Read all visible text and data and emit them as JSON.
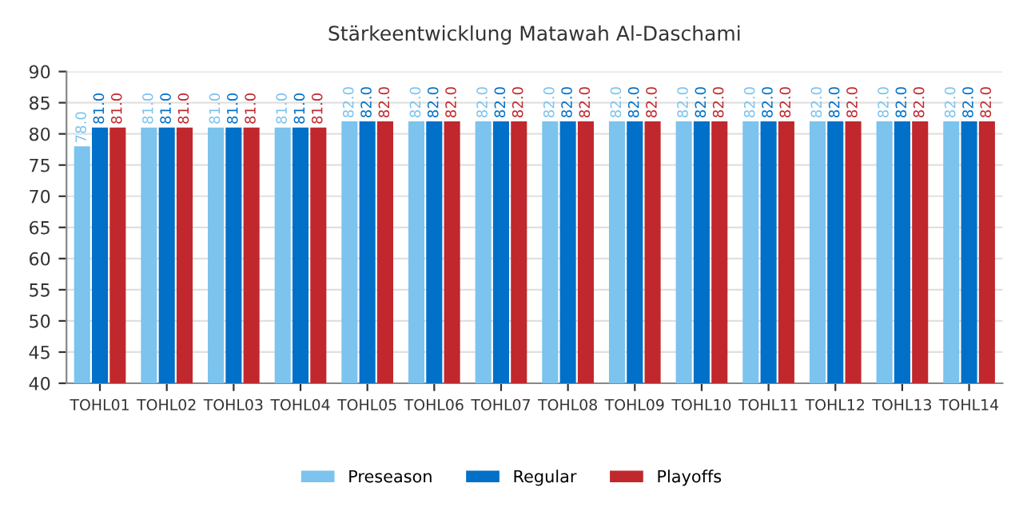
{
  "chart_data": {
    "type": "bar",
    "title": "Stärkeentwicklung Matawah Al-Daschami",
    "categories": [
      "TOHL01",
      "TOHL02",
      "TOHL03",
      "TOHL04",
      "TOHL05",
      "TOHL06",
      "TOHL07",
      "TOHL08",
      "TOHL09",
      "TOHL10",
      "TOHL11",
      "TOHL12",
      "TOHL13",
      "TOHL14"
    ],
    "series": [
      {
        "name": "Preseason",
        "color": "#7cc3ee",
        "values": [
          78,
          81,
          81,
          81,
          82,
          82,
          82,
          82,
          82,
          82,
          82,
          82,
          82,
          82
        ],
        "value_labels": [
          "78.0",
          "81.0",
          "81.0",
          "81.0",
          "82.0",
          "82.0",
          "82.0",
          "82.0",
          "82.0",
          "82.0",
          "82.0",
          "82.0",
          "82.0",
          "82.0"
        ]
      },
      {
        "name": "Regular",
        "color": "#0070c8",
        "values": [
          81,
          81,
          81,
          81,
          82,
          82,
          82,
          82,
          82,
          82,
          82,
          82,
          82,
          82
        ],
        "value_labels": [
          "81.0",
          "81.0",
          "81.0",
          "81.0",
          "82.0",
          "82.0",
          "82.0",
          "82.0",
          "82.0",
          "82.0",
          "82.0",
          "82.0",
          "82.0",
          "82.0"
        ]
      },
      {
        "name": "Playoffs",
        "color": "#c0282d",
        "values": [
          81,
          81,
          81,
          81,
          82,
          82,
          82,
          82,
          82,
          82,
          82,
          82,
          82,
          82
        ],
        "value_labels": [
          "81.0",
          "81.0",
          "81.0",
          "81.0",
          "82.0",
          "82.0",
          "82.0",
          "82.0",
          "82.0",
          "82.0",
          "82.0",
          "82.0",
          "82.0",
          "82.0"
        ]
      }
    ],
    "ylim": [
      40,
      90
    ],
    "yticks": [
      40,
      45,
      50,
      55,
      60,
      65,
      70,
      75,
      80,
      85,
      90
    ],
    "grid": "y",
    "legend": "bottom"
  }
}
